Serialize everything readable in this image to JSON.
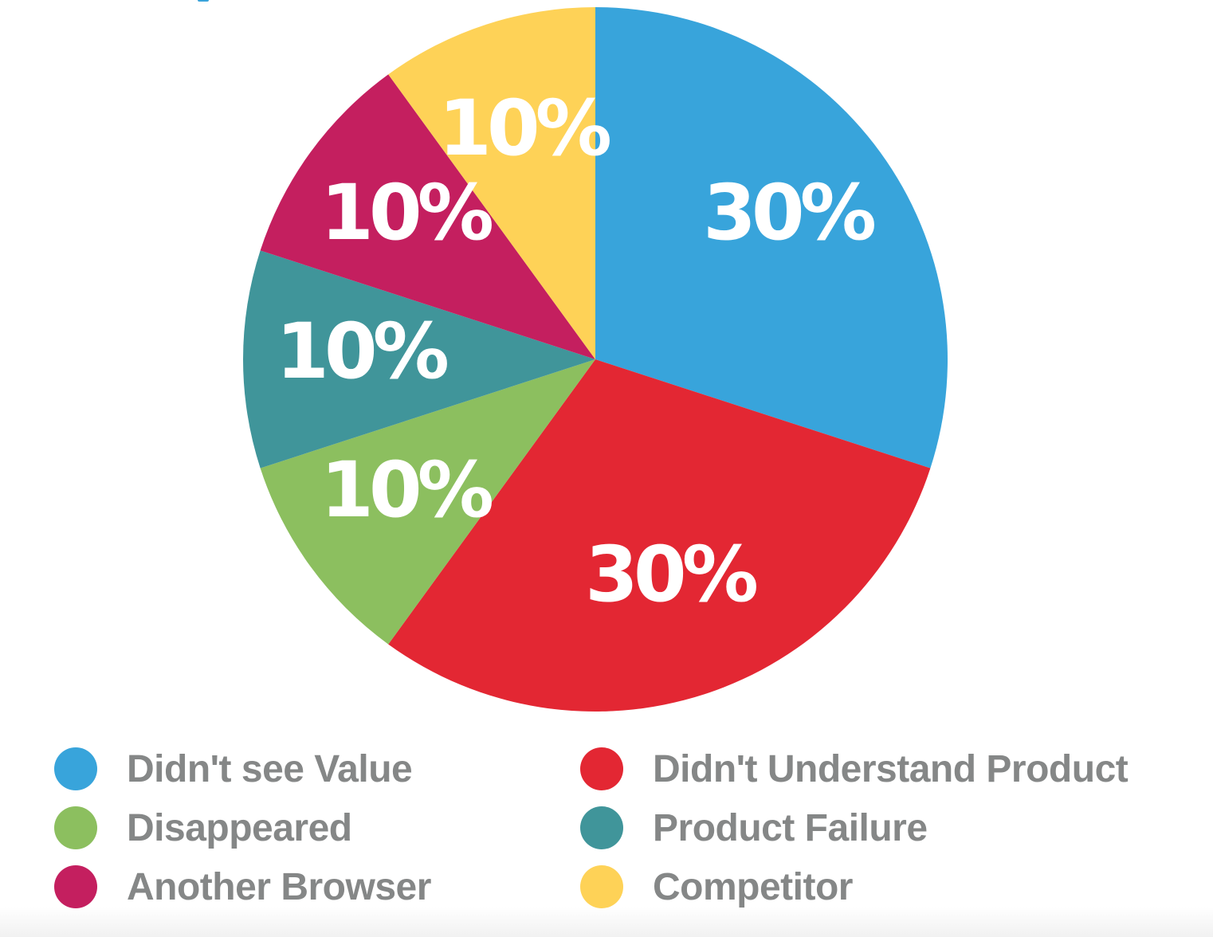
{
  "chart_data": {
    "type": "pie",
    "title": "",
    "start_angle_deg": 0,
    "direction": "clockwise",
    "slices": [
      {
        "label": "Didn't see Value",
        "value": 30,
        "display": "30%",
        "color": "#38a4db"
      },
      {
        "label": "Didn't Understand Product",
        "value": 30,
        "display": "30%",
        "color": "#e32733"
      },
      {
        "label": "Disappeared",
        "value": 10,
        "display": "10%",
        "color": "#8cbf5f"
      },
      {
        "label": "Product Failure",
        "value": 10,
        "display": "10%",
        "color": "#40959a"
      },
      {
        "label": "Another Browser",
        "value": 10,
        "display": "10%",
        "color": "#c41f5f"
      },
      {
        "label": "Competitor",
        "value": 10,
        "display": "10%",
        "color": "#fed257"
      }
    ],
    "legend": {
      "position": "bottom",
      "columns": 2,
      "entries": [
        "Didn't see Value",
        "Didn't Understand Product",
        "Disappeared",
        "Product Failure",
        "Another Browser",
        "Competitor"
      ]
    }
  },
  "slice_labels": {
    "didnt_see_value": "30%",
    "didnt_understand_product": "30%",
    "disappeared": "10%",
    "product_failure": "10%",
    "another_browser": "10%",
    "competitor": "10%"
  },
  "legend": {
    "items": [
      {
        "label": "Didn't see Value",
        "color": "#38a4db"
      },
      {
        "label": "Didn't Understand Product",
        "color": "#e32733"
      },
      {
        "label": "Disappeared",
        "color": "#8cbf5f"
      },
      {
        "label": "Product Failure",
        "color": "#40959a"
      },
      {
        "label": "Another Browser",
        "color": "#c41f5f"
      },
      {
        "label": "Competitor",
        "color": "#fed257"
      }
    ]
  }
}
